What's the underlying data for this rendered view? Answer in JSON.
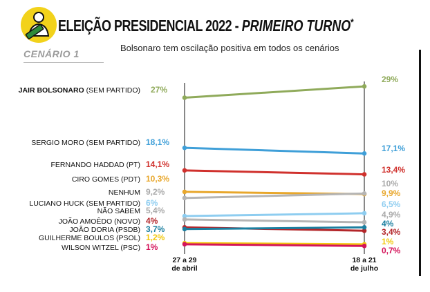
{
  "title": {
    "part1": "ELEIÇÃO PRESIDENCIAL 2022 - ",
    "part2": "PRIMEIRO TURNO",
    "star": "*"
  },
  "subtitle": "Bolsonaro tem oscilação positiva em todos os cenários",
  "scenario": "CENÁRIO 1",
  "chart_data": {
    "type": "line",
    "x": [
      "27 a 29 de abril",
      "18 a 21 de julho"
    ],
    "x_tick_lines": [
      [
        "27 a 29",
        "de abril"
      ],
      [
        "18 a 21",
        "de julho"
      ]
    ],
    "series": [
      {
        "name": "JAIR BOLSONARO",
        "party": "(SEM PARTIDO)",
        "values": [
          27,
          29
        ],
        "labels": [
          "27%",
          "29%"
        ],
        "color": "#8faa5a"
      },
      {
        "name": "SERGIO MORO",
        "party": "(SEM PARTIDO)",
        "values": [
          18.1,
          17.1
        ],
        "labels": [
          "18,1%",
          "17,1%"
        ],
        "color": "#3f9fd8"
      },
      {
        "name": "FERNANDO HADDAD",
        "party": "(PT)",
        "values": [
          14.1,
          13.4
        ],
        "labels": [
          "14,1%",
          "13,4%"
        ],
        "color": "#d0312d"
      },
      {
        "name": "CIRO GOMES",
        "party": "(PDT)",
        "values": [
          10.3,
          9.9
        ],
        "labels": [
          "10,3%",
          "9,9%"
        ],
        "color": "#e8a72c"
      },
      {
        "name": "NENHUM",
        "party": "",
        "values": [
          9.2,
          10
        ],
        "labels": [
          "9,2%",
          "10%"
        ],
        "color": "#b5b5b5",
        "muted": true
      },
      {
        "name": "LUCIANO HUCK",
        "party": "(SEM PARTIDO)",
        "values": [
          6,
          6.5
        ],
        "labels": [
          "6%",
          "6,5%"
        ],
        "color": "#8ecdf0"
      },
      {
        "name": "NÃO SABEM",
        "party": "",
        "values": [
          5.4,
          4.9
        ],
        "labels": [
          "5,4%",
          "4,9%"
        ],
        "color": "#b5b5b5",
        "muted": true
      },
      {
        "name": "JOÃO AMOÊDO",
        "party": "(NOVO)",
        "values": [
          4,
          3.4
        ],
        "labels": [
          "4%",
          "3,4%"
        ],
        "color": "#b3262a"
      },
      {
        "name": "JOÃO DORIA",
        "party": "(PSDB)",
        "values": [
          3.7,
          4
        ],
        "labels": [
          "3,7%",
          "4%"
        ],
        "color": "#1b7fa0"
      },
      {
        "name": "GUILHERME BOULOS",
        "party": "(PSOL)",
        "values": [
          1.2,
          1
        ],
        "labels": [
          "1,2%",
          "1%"
        ],
        "color": "#f2c80f"
      },
      {
        "name": "WILSON WITZEL",
        "party": "(PSC)",
        "values": [
          1,
          0.7
        ],
        "labels": [
          "1%",
          "0,7%"
        ],
        "color": "#d4145a"
      }
    ],
    "ylim": [
      0,
      30
    ],
    "grid": false
  }
}
